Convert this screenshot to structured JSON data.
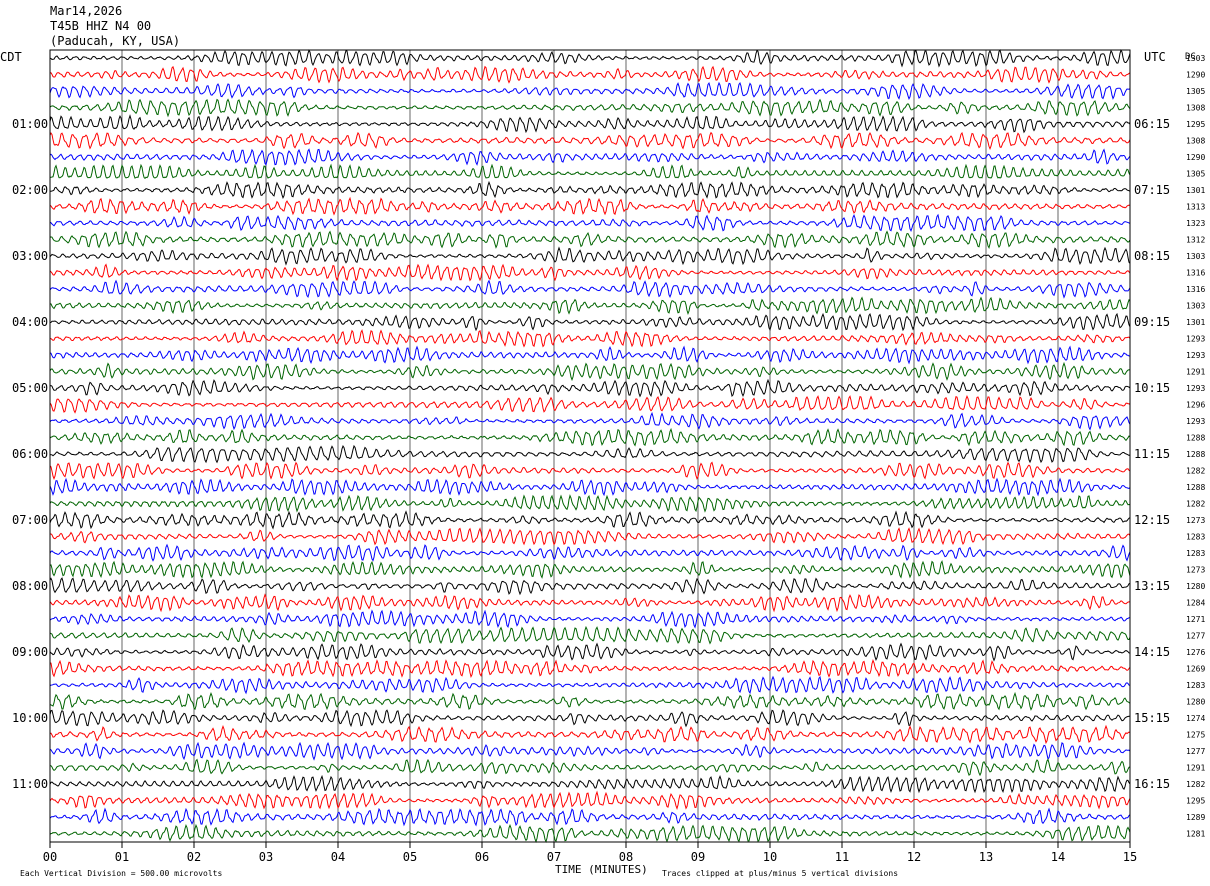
{
  "header": {
    "date": "Mar14,2026",
    "station": "T45B HHZ N4 00",
    "location": "(Paducah, KY, USA)"
  },
  "left_tz": "CDT",
  "right_tz": "UTC",
  "dc_label": "DC",
  "footer": {
    "scale_note": "Each Vertical Division =  500.00 microvolts",
    "xlabel": "TIME (MINUTES)",
    "clip_note": "Traces clipped at plus/minus 5 vertical divisions"
  },
  "chart_data": {
    "type": "line",
    "title": "",
    "xlabel": "TIME (MINUTES)",
    "xlim": [
      0,
      15
    ],
    "x_ticks": [
      "00",
      "01",
      "02",
      "03",
      "04",
      "05",
      "06",
      "07",
      "08",
      "09",
      "10",
      "11",
      "12",
      "13",
      "14",
      "15"
    ],
    "trace_colors": [
      "#000000",
      "#ff0000",
      "#0000ff",
      "#006400"
    ],
    "trace_count": 48,
    "left_hour_labels": [
      "01:00",
      "02:00",
      "03:00",
      "04:00",
      "05:00",
      "06:00",
      "07:00",
      "08:00",
      "09:00",
      "10:00",
      "11:00"
    ],
    "right_hour_labels": [
      "06:15",
      "07:15",
      "08:15",
      "09:15",
      "10:15",
      "11:15",
      "12:15",
      "13:15",
      "14:15",
      "15:15",
      "16:15"
    ],
    "dc_offsets": [
      1303,
      1290,
      1305,
      1308,
      1295,
      1308,
      1290,
      1305,
      1301,
      1313,
      1323,
      1312,
      1303,
      1316,
      1316,
      1303,
      1301,
      1293,
      1293,
      1291,
      1293,
      1296,
      1293,
      1288,
      1288,
      1282,
      1288,
      1282,
      1273,
      1283,
      1283,
      1273,
      1280,
      1284,
      1271,
      1277,
      1276,
      1269,
      1283,
      1280,
      1274,
      1275,
      1277,
      1291,
      1282,
      1295,
      1289,
      1281
    ]
  }
}
